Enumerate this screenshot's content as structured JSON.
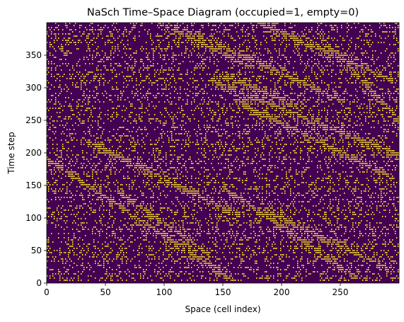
{
  "chart_data": {
    "type": "heatmap",
    "title": "NaSch Time–Space Diagram (occupied=1, empty=0)",
    "xlabel": "Space (cell index)",
    "ylabel": "Time step",
    "xlim": [
      0,
      300
    ],
    "ylim": [
      0,
      400
    ],
    "x_ticks": [
      0,
      50,
      100,
      150,
      200,
      250
    ],
    "y_ticks": [
      0,
      50,
      100,
      150,
      200,
      250,
      300,
      350
    ],
    "value_range": [
      0,
      1
    ],
    "colormap": {
      "0": "#440154",
      "1": "#fde725"
    },
    "background_fill_fraction": 0.22,
    "jam_bands": [
      {
        "t_start": 190,
        "t_end": 0,
        "x_start": 0,
        "x_end": 160
      },
      {
        "t_start": 215,
        "t_end": 100,
        "x_start": 35,
        "x_end": 165
      },
      {
        "t_start": 140,
        "t_end": 40,
        "x_start": 60,
        "x_end": 140
      },
      {
        "t_start": 145,
        "t_end": 5,
        "x_start": 150,
        "x_end": 265
      },
      {
        "t_start": 110,
        "t_end": 20,
        "x_start": 185,
        "x_end": 290
      },
      {
        "t_start": 280,
        "t_end": 160,
        "x_start": 160,
        "x_end": 295
      },
      {
        "t_start": 310,
        "t_end": 195,
        "x_start": 140,
        "x_end": 300
      },
      {
        "t_start": 320,
        "t_end": 270,
        "x_start": 150,
        "x_end": 215
      },
      {
        "t_start": 395,
        "t_end": 280,
        "x_start": 110,
        "x_end": 250
      },
      {
        "t_start": 400,
        "t_end": 310,
        "x_start": 180,
        "x_end": 295
      },
      {
        "t_start": 385,
        "t_end": 250,
        "x_start": 230,
        "x_end": 300
      },
      {
        "t_start": 400,
        "t_end": 330,
        "x_start": 95,
        "x_end": 175
      }
    ]
  }
}
